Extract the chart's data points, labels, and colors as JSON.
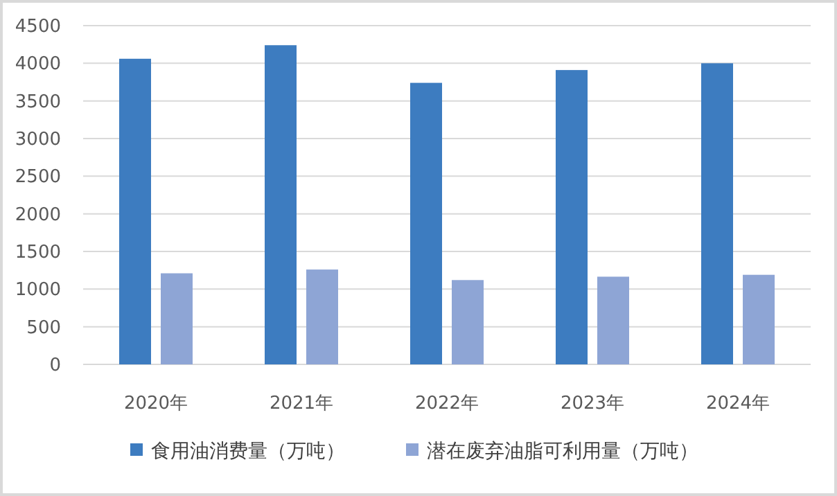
{
  "chart_data": {
    "type": "bar",
    "categories": [
      "2020年",
      "2021年",
      "2022年",
      "2023年",
      "2024年"
    ],
    "series": [
      {
        "name": "食用油消费量（万吨）",
        "color": "#3d7cc0",
        "values": [
          4060,
          4240,
          3740,
          3910,
          4000
        ]
      },
      {
        "name": "潜在废弃油脂可利用量（万吨）",
        "color": "#8ea5d5",
        "values": [
          1210,
          1260,
          1120,
          1165,
          1190
        ]
      }
    ],
    "ylim": [
      0,
      4500
    ],
    "yticks": [
      0,
      500,
      1000,
      1500,
      2000,
      2500,
      3000,
      3500,
      4000,
      4500
    ],
    "grid": "y",
    "legend": "bottom"
  }
}
